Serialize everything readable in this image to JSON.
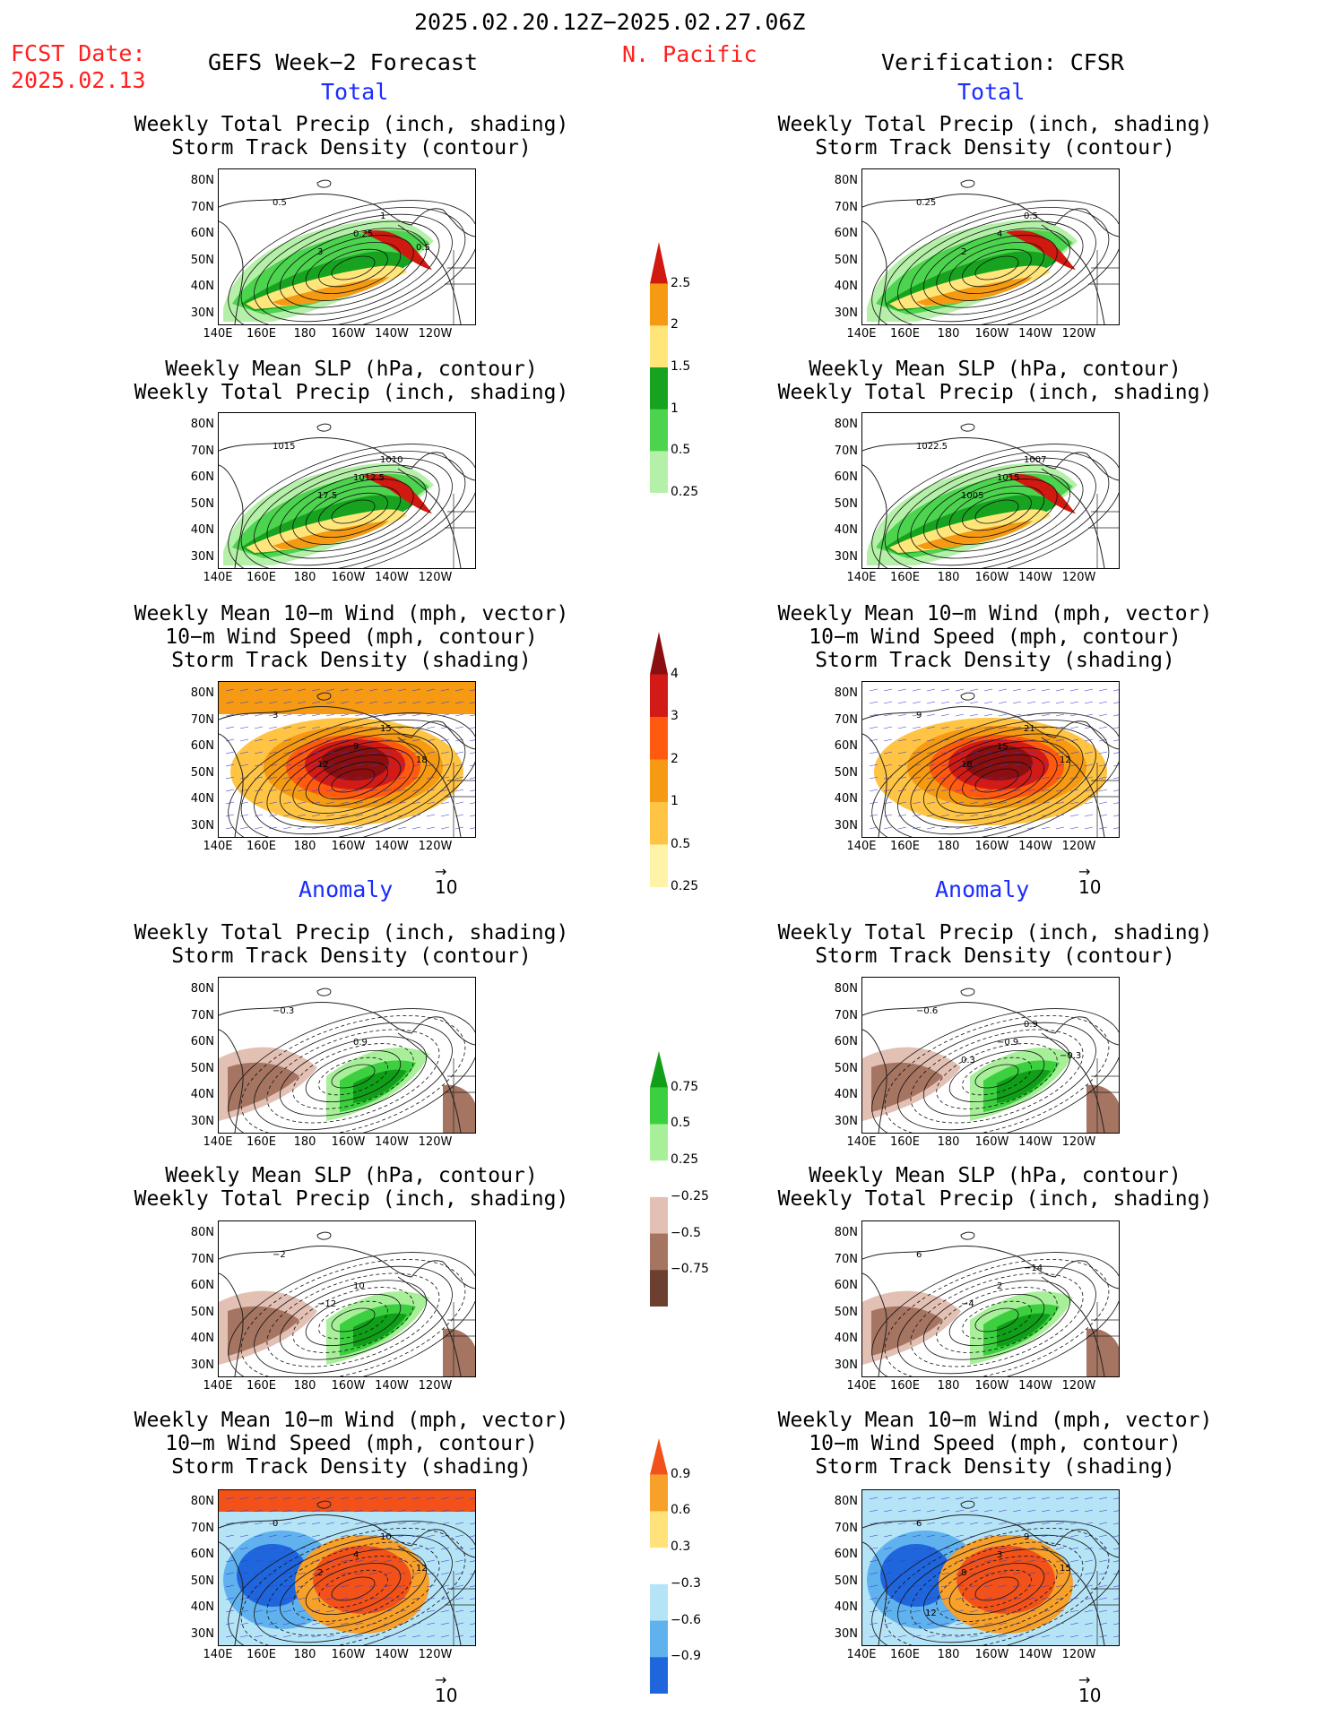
{
  "header": {
    "date_range": "2025.02.20.12Z−2025.02.27.06Z",
    "fcst_label": "FCST Date:",
    "fcst_date": "2025.02.13",
    "forecast_title": "GEFS Week−2 Forecast",
    "region": "N. Pacific",
    "verification": "Verification: CFSR"
  },
  "sections": {
    "total": "Total",
    "anomaly": "Anomaly"
  },
  "panel_titles": {
    "precip_track": [
      "Weekly Total Precip (inch, shading)",
      "Storm Track Density (contour)"
    ],
    "slp_precip": [
      "Weekly Mean SLP (hPa, contour)",
      "Weekly Total Precip (inch, shading)"
    ],
    "wind_track": [
      "Weekly Mean 10−m Wind (mph, vector)",
      "10−m Wind Speed (mph, contour)",
      "Storm Track Density (shading)"
    ]
  },
  "axes": {
    "lat_labels": [
      "80N",
      "70N",
      "60N",
      "50N",
      "40N",
      "30N"
    ],
    "lon_labels": [
      "140E",
      "160E",
      "180",
      "160W",
      "140W",
      "120W"
    ]
  },
  "vector_ref": "10",
  "colorbars": {
    "precip_total": {
      "labels": [
        "2.5",
        "2",
        "1.5",
        "1",
        "0.5",
        "0.25"
      ],
      "colors": [
        "#d0190f",
        "#f59a12",
        "#ffe57a",
        "#17a31f",
        "#4cd44f",
        "#b5f0a8"
      ]
    },
    "track_total": {
      "labels": [
        "4",
        "3",
        "2",
        "1",
        "0.5",
        "0.25"
      ],
      "colors": [
        "#8b0f10",
        "#d21b16",
        "#ff5a0f",
        "#f59a12",
        "#ffc444",
        "#fff3a8"
      ]
    },
    "precip_anom": {
      "labels": [
        "0.75",
        "0.5",
        "0.25",
        "−0.25",
        "−0.5",
        "−0.75"
      ],
      "colors": [
        "#109f18",
        "#3ccf40",
        "#a8ef9a",
        "#ffffff",
        "#e2c0b3",
        "#a57562",
        "#6b4030"
      ]
    },
    "track_anom": {
      "labels": [
        "0.9",
        "0.6",
        "0.3",
        "−0.3",
        "−0.6",
        "−0.9"
      ],
      "colors": [
        "#f2521a",
        "#f7a02a",
        "#ffe27a",
        "#ffffff",
        "#b5e4f7",
        "#5fb2ee",
        "#1f66dc"
      ]
    }
  },
  "contour_labels": {
    "f_total_precip": [
      "0.5",
      "0.25",
      "3",
      "1",
      "0.5"
    ],
    "v_total_precip": [
      "0.25",
      "4",
      "2",
      "0.5"
    ],
    "f_total_slp": [
      "1015",
      "1012.5",
      "17.5",
      "1010"
    ],
    "v_total_slp": [
      "1022.5",
      "1015",
      "1005",
      "1007"
    ],
    "f_total_wind": [
      "3",
      "9",
      "12",
      "15",
      "18"
    ],
    "v_total_wind": [
      "9",
      "15",
      "18",
      "21",
      "12"
    ],
    "f_anom_precip": [
      "−0.3",
      "0.9"
    ],
    "v_anom_precip": [
      "−0.6",
      "−0.9",
      "0.3",
      "0.9",
      "−0.3"
    ],
    "f_anom_slp": [
      "−2",
      "10",
      "−12"
    ],
    "v_anom_slp": [
      "6",
      "2",
      "−4",
      "−14"
    ],
    "f_anom_wind": [
      "0",
      "4",
      "2",
      "10",
      "12"
    ],
    "v_anom_wind": [
      "6",
      "3",
      "8",
      "9",
      "15",
      "12"
    ]
  }
}
